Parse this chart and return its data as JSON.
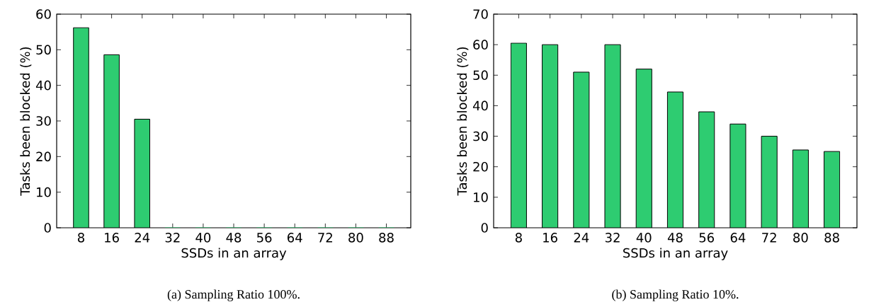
{
  "chart_data": [
    {
      "type": "bar",
      "xlabel": "SSDs in an array",
      "ylabel": "Tasks been blocked (%)",
      "categories": [
        "8",
        "16",
        "24",
        "32",
        "40",
        "48",
        "56",
        "64",
        "72",
        "80",
        "88"
      ],
      "values": [
        56.2,
        48.6,
        30.5,
        0,
        0,
        0,
        0,
        0,
        0,
        0,
        0
      ],
      "color": "#2ecc71",
      "ylim": [
        0,
        60
      ],
      "yticks": [
        0,
        10,
        20,
        30,
        40,
        50,
        60
      ],
      "annotations": [
        "(a) Sampling Ratio 100%."
      ]
    },
    {
      "type": "bar",
      "xlabel": "SSDs in an array",
      "ylabel": "Tasks been blocked (%)",
      "categories": [
        "8",
        "16",
        "24",
        "32",
        "40",
        "48",
        "56",
        "64",
        "72",
        "80",
        "88"
      ],
      "values": [
        60.5,
        60,
        51,
        60,
        52,
        44.5,
        38,
        34,
        30,
        25.5,
        25
      ],
      "color": "#2ecc71",
      "ylim": [
        0,
        70
      ],
      "yticks": [
        0,
        10,
        20,
        30,
        40,
        50,
        60,
        70
      ],
      "annotations": [
        "(b) Sampling Ratio 10%."
      ]
    }
  ]
}
